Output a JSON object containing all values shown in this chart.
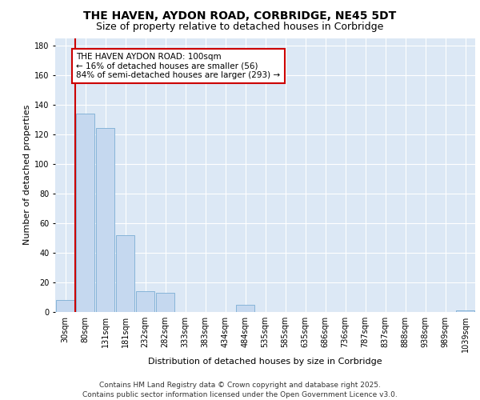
{
  "title_line1": "THE HAVEN, AYDON ROAD, CORBRIDGE, NE45 5DT",
  "title_line2": "Size of property relative to detached houses in Corbridge",
  "xlabel": "Distribution of detached houses by size in Corbridge",
  "ylabel": "Number of detached properties",
  "categories": [
    "30sqm",
    "80sqm",
    "131sqm",
    "181sqm",
    "232sqm",
    "282sqm",
    "333sqm",
    "383sqm",
    "434sqm",
    "484sqm",
    "535sqm",
    "585sqm",
    "635sqm",
    "686sqm",
    "736sqm",
    "787sqm",
    "837sqm",
    "888sqm",
    "938sqm",
    "989sqm",
    "1039sqm"
  ],
  "values": [
    8,
    134,
    124,
    52,
    14,
    13,
    0,
    0,
    0,
    5,
    0,
    0,
    0,
    0,
    0,
    0,
    0,
    0,
    0,
    0,
    1
  ],
  "bar_color": "#c5d8ef",
  "bar_edge_color": "#7aadd4",
  "annotation_box_text": "THE HAVEN AYDON ROAD: 100sqm\n← 16% of detached houses are smaller (56)\n84% of semi-detached houses are larger (293) →",
  "annotation_box_color": "#ffffff",
  "annotation_box_edge_color": "#cc0000",
  "vline_color": "#cc0000",
  "ylim": [
    0,
    185
  ],
  "yticks": [
    0,
    20,
    40,
    60,
    80,
    100,
    120,
    140,
    160,
    180
  ],
  "background_color": "#dce8f5",
  "grid_color": "#ffffff",
  "footer_text": "Contains HM Land Registry data © Crown copyright and database right 2025.\nContains public sector information licensed under the Open Government Licence v3.0.",
  "title_fontsize": 10,
  "subtitle_fontsize": 9,
  "axis_label_fontsize": 8,
  "tick_fontsize": 7,
  "annotation_fontsize": 7.5,
  "footer_fontsize": 6.5
}
